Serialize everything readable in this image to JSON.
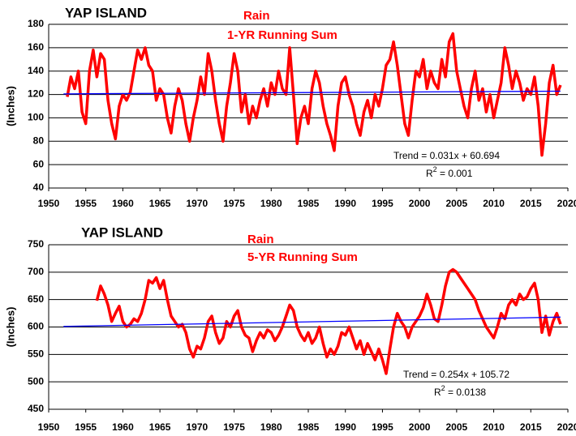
{
  "chart_data": [
    {
      "type": "line",
      "title": "YAP ISLAND",
      "annotations": [
        "Rain",
        "1-YR Running Sum"
      ],
      "y_label": "(Inches)",
      "x": [
        1952.5,
        1953,
        1953.5,
        1954,
        1954.5,
        1955,
        1955.5,
        1956,
        1956.5,
        1957,
        1957.5,
        1958,
        1958.5,
        1959,
        1959.5,
        1960,
        1960.5,
        1961,
        1961.5,
        1962,
        1962.5,
        1963,
        1963.5,
        1964,
        1964.5,
        1965,
        1965.5,
        1966,
        1966.5,
        1967,
        1967.5,
        1968,
        1968.5,
        1969,
        1969.5,
        1970,
        1970.5,
        1971,
        1971.5,
        1972,
        1972.5,
        1973,
        1973.5,
        1974,
        1974.5,
        1975,
        1975.5,
        1976,
        1976.5,
        1977,
        1977.5,
        1978,
        1978.5,
        1979,
        1979.5,
        1980,
        1980.5,
        1981,
        1981.5,
        1982,
        1982.5,
        1983,
        1983.5,
        1984,
        1984.5,
        1985,
        1985.5,
        1986,
        1986.5,
        1987,
        1987.5,
        1988,
        1988.5,
        1989,
        1989.5,
        1990,
        1990.5,
        1991,
        1991.5,
        1992,
        1992.5,
        1993,
        1993.5,
        1994,
        1994.5,
        1995,
        1995.5,
        1996,
        1996.5,
        1997,
        1997.5,
        1998,
        1998.5,
        1999,
        1999.5,
        2000,
        2000.5,
        2001,
        2001.5,
        2002,
        2002.5,
        2003,
        2003.5,
        2004,
        2004.5,
        2005,
        2005.5,
        2006,
        2006.5,
        2007,
        2007.5,
        2008,
        2008.5,
        2009,
        2009.5,
        2010,
        2010.5,
        2011,
        2011.5,
        2012,
        2012.5,
        2013,
        2013.5,
        2014,
        2014.5,
        2015,
        2015.5,
        2016,
        2016.5,
        2017,
        2017.5,
        2018,
        2018.5,
        2019
      ],
      "series": [
        {
          "color": "#ff0000",
          "values": [
            118,
            135,
            125,
            140,
            105,
            95,
            140,
            158,
            135,
            155,
            150,
            115,
            95,
            82,
            110,
            120,
            115,
            122,
            140,
            158,
            150,
            160,
            145,
            140,
            115,
            125,
            120,
            100,
            87,
            110,
            125,
            115,
            95,
            80,
            100,
            115,
            135,
            120,
            155,
            140,
            115,
            95,
            80,
            110,
            130,
            155,
            140,
            105,
            120,
            95,
            110,
            100,
            115,
            125,
            110,
            130,
            120,
            140,
            125,
            120,
            160,
            120,
            78,
            100,
            110,
            95,
            125,
            140,
            130,
            110,
            95,
            85,
            72,
            110,
            130,
            135,
            120,
            110,
            95,
            85,
            105,
            115,
            100,
            120,
            110,
            125,
            145,
            150,
            165,
            145,
            120,
            95,
            85,
            115,
            140,
            135,
            150,
            125,
            140,
            130,
            125,
            150,
            135,
            165,
            172,
            140,
            125,
            110,
            100,
            125,
            140,
            115,
            125,
            105,
            120,
            100,
            115,
            130,
            160,
            145,
            125,
            140,
            130,
            115,
            125,
            120,
            135,
            110,
            68,
            95,
            130,
            145,
            120,
            128
          ]
        }
      ],
      "trend": {
        "color": "#0000ff",
        "x": [
          1952,
          2019
        ],
        "values": [
          120.5,
          122.8
        ]
      },
      "trend_label": "Trend = 0.031x + 60.694",
      "r2_label": {
        "base": "R",
        "sup": "2",
        "rest": " = 0.001"
      },
      "xlim": [
        1950,
        2020
      ],
      "xticks": [
        1950,
        1955,
        1960,
        1965,
        1970,
        1975,
        1980,
        1985,
        1990,
        1995,
        2000,
        2005,
        2010,
        2015,
        2020
      ],
      "ylim": [
        40,
        180
      ],
      "yticks": [
        40,
        60,
        80,
        100,
        120,
        140,
        160,
        180
      ],
      "grid": true
    },
    {
      "type": "line",
      "title": "YAP ISLAND",
      "annotations": [
        "Rain",
        "5-YR Running Sum"
      ],
      "y_label": "(Inches)",
      "x": [
        1956.5,
        1957,
        1957.5,
        1958,
        1958.5,
        1959,
        1959.5,
        1960,
        1960.5,
        1961,
        1961.5,
        1962,
        1962.5,
        1963,
        1963.5,
        1964,
        1964.5,
        1965,
        1965.5,
        1966,
        1966.5,
        1967,
        1967.5,
        1968,
        1968.5,
        1969,
        1969.5,
        1970,
        1970.5,
        1971,
        1971.5,
        1972,
        1972.5,
        1973,
        1973.5,
        1974,
        1974.5,
        1975,
        1975.5,
        1976,
        1976.5,
        1977,
        1977.5,
        1978,
        1978.5,
        1979,
        1979.5,
        1980,
        1980.5,
        1981,
        1981.5,
        1982,
        1982.5,
        1983,
        1983.5,
        1984,
        1984.5,
        1985,
        1985.5,
        1986,
        1986.5,
        1987,
        1987.5,
        1988,
        1988.5,
        1989,
        1989.5,
        1990,
        1990.5,
        1991,
        1991.5,
        1992,
        1992.5,
        1993,
        1993.5,
        1994,
        1994.5,
        1995,
        1995.5,
        1996,
        1996.5,
        1997,
        1997.5,
        1998,
        1998.5,
        1999,
        1999.5,
        2000,
        2000.5,
        2001,
        2001.5,
        2002,
        2002.5,
        2003,
        2003.5,
        2004,
        2004.5,
        2005,
        2005.5,
        2006,
        2006.5,
        2007,
        2007.5,
        2008,
        2008.5,
        2009,
        2009.5,
        2010,
        2010.5,
        2011,
        2011.5,
        2012,
        2012.5,
        2013,
        2013.5,
        2014,
        2014.5,
        2015,
        2015.5,
        2016,
        2016.5,
        2017,
        2017.5,
        2018,
        2018.5,
        2019
      ],
      "series": [
        {
          "color": "#ff0000",
          "values": [
            648,
            675,
            660,
            640,
            610,
            625,
            638,
            610,
            600,
            605,
            615,
            610,
            625,
            650,
            685,
            680,
            690,
            670,
            685,
            650,
            620,
            610,
            600,
            605,
            590,
            560,
            545,
            565,
            560,
            580,
            610,
            620,
            590,
            570,
            580,
            610,
            600,
            620,
            630,
            600,
            585,
            580,
            555,
            575,
            590,
            580,
            595,
            590,
            575,
            585,
            600,
            620,
            640,
            630,
            600,
            585,
            575,
            590,
            570,
            580,
            600,
            570,
            545,
            560,
            550,
            565,
            590,
            585,
            600,
            580,
            560,
            575,
            550,
            570,
            555,
            540,
            560,
            540,
            515,
            560,
            600,
            625,
            610,
            600,
            580,
            600,
            610,
            620,
            635,
            660,
            640,
            615,
            610,
            640,
            675,
            700,
            705,
            700,
            690,
            680,
            670,
            660,
            650,
            630,
            615,
            600,
            590,
            580,
            600,
            625,
            615,
            640,
            650,
            640,
            660,
            650,
            655,
            670,
            680,
            650,
            590,
            620,
            585,
            610,
            625,
            605
          ]
        }
      ],
      "trend": {
        "color": "#0000ff",
        "x": [
          1952,
          2019
        ],
        "values": [
          601,
          618
        ]
      },
      "trend_label": "Trend = 0.254x + 105.72",
      "r2_label": {
        "base": "R",
        "sup": "2",
        "rest": " = 0.0138"
      },
      "xlim": [
        1950,
        2020
      ],
      "xticks": [
        1950,
        1955,
        1960,
        1965,
        1970,
        1975,
        1980,
        1985,
        1990,
        1995,
        2000,
        2005,
        2010,
        2015,
        2020
      ],
      "ylim": [
        450,
        750
      ],
      "yticks": [
        450,
        500,
        550,
        600,
        650,
        700,
        750
      ],
      "grid": true
    }
  ]
}
